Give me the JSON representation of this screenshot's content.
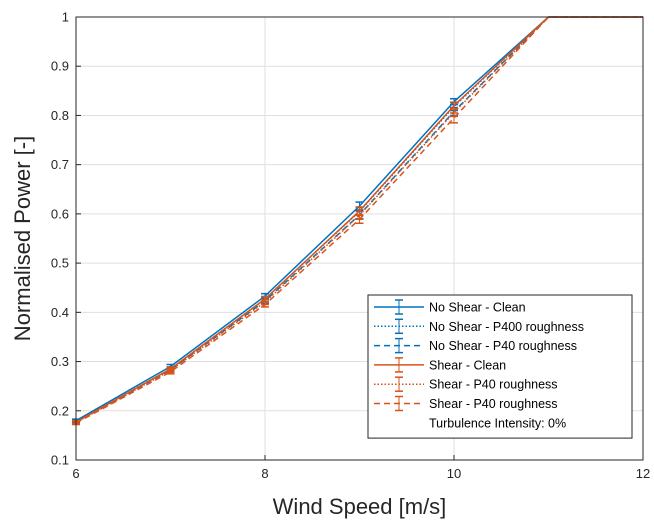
{
  "chart_data": {
    "type": "line",
    "xlabel": "Wind Speed [m/s]",
    "ylabel": "Normalised Power [-]",
    "xlim": [
      6,
      12
    ],
    "ylim": [
      0.1,
      1
    ],
    "xticks": [
      "6",
      "8",
      "10",
      "12"
    ],
    "yticks": [
      "0.1",
      "0.2",
      "0.3",
      "0.4",
      "0.5",
      "0.6",
      "0.7",
      "0.8",
      "0.9",
      "1"
    ],
    "grid": true,
    "legend_position": "bottom-right",
    "x": [
      6,
      7,
      8,
      9,
      10,
      11,
      12
    ],
    "series": [
      {
        "name": "No Shear - Clean",
        "color": "#0072BD",
        "dash": "solid",
        "values": [
          0.18,
          0.29,
          0.433,
          0.616,
          0.828,
          1.0,
          1.0
        ],
        "errors": [
          0.003,
          0.004,
          0.005,
          0.008,
          0.006,
          0,
          0
        ]
      },
      {
        "name": "No Shear - P400 roughness",
        "color": "#0072BD",
        "dash": "dotted",
        "values": [
          0.178,
          0.285,
          0.427,
          0.605,
          0.818,
          1.0,
          1.0
        ],
        "errors": [
          0.003,
          0.004,
          0.005,
          0.008,
          0.008,
          0,
          0
        ]
      },
      {
        "name": "No Shear - P40 roughness",
        "color": "#0072BD",
        "dash": "dashed",
        "values": [
          0.177,
          0.283,
          0.423,
          0.598,
          0.808,
          1.0,
          1.0
        ],
        "errors": [
          0.003,
          0.004,
          0.005,
          0.008,
          0.008,
          0,
          0
        ]
      },
      {
        "name": "Shear - Clean",
        "color": "#D95319",
        "dash": "solid",
        "values": [
          0.177,
          0.285,
          0.427,
          0.606,
          0.82,
          1.0,
          1.0
        ],
        "errors": [
          0.003,
          0.004,
          0.005,
          0.008,
          0.007,
          0,
          0
        ]
      },
      {
        "name": "Shear - P40 roughness",
        "color": "#D95319",
        "dash": "dotted",
        "values": [
          0.176,
          0.282,
          0.421,
          0.597,
          0.806,
          1.0,
          1.0
        ],
        "errors": [
          0.003,
          0.004,
          0.005,
          0.008,
          0.008,
          0,
          0
        ]
      },
      {
        "name": "Shear - P40 roughness",
        "color": "#D95319",
        "dash": "dashed",
        "values": [
          0.175,
          0.279,
          0.416,
          0.589,
          0.795,
          1.0,
          1.0
        ],
        "errors": [
          0.003,
          0.004,
          0.005,
          0.008,
          0.01,
          0,
          0
        ]
      }
    ],
    "annotation": "Turbulence Intensity: 0%"
  }
}
